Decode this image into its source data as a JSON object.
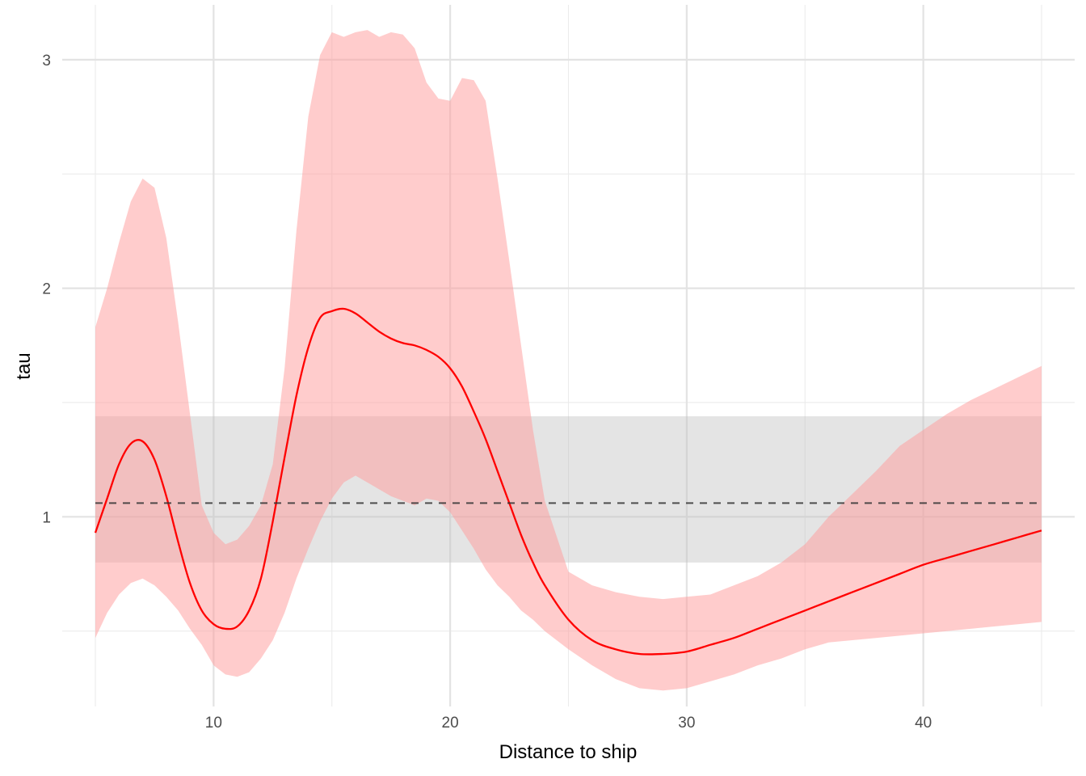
{
  "chart_data": {
    "type": "line",
    "title": "",
    "xlabel": "Distance to ship",
    "ylabel": "tau",
    "xlim": [
      3.6,
      46.4
    ],
    "ylim": [
      0.17,
      3.24
    ],
    "x_major_ticks": [
      10,
      20,
      30,
      40
    ],
    "x_minor_ticks": [
      5,
      15,
      25,
      35,
      45
    ],
    "y_major_ticks": [
      1,
      2,
      3
    ],
    "y_minor_ticks": [
      0.5,
      1.5,
      2.5
    ],
    "x_tick_labels": [
      "10",
      "20",
      "30",
      "40"
    ],
    "y_tick_labels": [
      "1",
      "2",
      "3"
    ],
    "grid": true,
    "reference": {
      "line_y": 1.06,
      "band_low": 0.8,
      "band_high": 1.44,
      "band_color": "#bfbfbf",
      "line_color": "#333333"
    },
    "series": [
      {
        "color": "#ff0000",
        "ribbon_color": "#ff9999",
        "x": [
          5,
          5.5,
          6,
          6.5,
          7,
          7.5,
          8,
          8.5,
          9,
          9.5,
          10,
          10.5,
          11,
          11.5,
          12,
          12.5,
          13,
          13.5,
          14,
          14.5,
          15,
          15.5,
          16,
          16.5,
          17,
          17.5,
          18,
          18.5,
          19,
          19.5,
          20,
          20.5,
          21,
          21.5,
          22,
          22.5,
          23,
          23.5,
          24,
          25,
          26,
          27,
          28,
          29,
          30,
          31,
          32,
          33,
          34,
          35,
          36,
          37,
          38,
          39,
          40,
          41,
          42,
          43,
          44,
          45
        ],
        "y": [
          0.93,
          1.08,
          1.23,
          1.32,
          1.33,
          1.25,
          1.09,
          0.89,
          0.71,
          0.59,
          0.53,
          0.51,
          0.52,
          0.59,
          0.73,
          0.98,
          1.26,
          1.53,
          1.74,
          1.87,
          1.9,
          1.91,
          1.89,
          1.85,
          1.81,
          1.78,
          1.76,
          1.75,
          1.73,
          1.7,
          1.65,
          1.57,
          1.46,
          1.34,
          1.2,
          1.06,
          0.92,
          0.8,
          0.7,
          0.55,
          0.46,
          0.42,
          0.4,
          0.4,
          0.41,
          0.44,
          0.47,
          0.51,
          0.55,
          0.59,
          0.63,
          0.67,
          0.71,
          0.75,
          0.79,
          0.82,
          0.85,
          0.88,
          0.91,
          0.94
        ],
        "lower": [
          0.47,
          0.58,
          0.66,
          0.71,
          0.73,
          0.7,
          0.65,
          0.59,
          0.51,
          0.44,
          0.35,
          0.31,
          0.3,
          0.32,
          0.38,
          0.46,
          0.58,
          0.73,
          0.86,
          0.98,
          1.08,
          1.15,
          1.18,
          1.15,
          1.12,
          1.09,
          1.07,
          1.05,
          1.08,
          1.07,
          1.02,
          0.94,
          0.86,
          0.77,
          0.7,
          0.65,
          0.59,
          0.55,
          0.5,
          0.42,
          0.35,
          0.29,
          0.25,
          0.24,
          0.25,
          0.28,
          0.31,
          0.35,
          0.38,
          0.42,
          0.45,
          0.46,
          0.47,
          0.48,
          0.49,
          0.5,
          0.51,
          0.52,
          0.53,
          0.54
        ],
        "upper": [
          1.83,
          2.0,
          2.2,
          2.38,
          2.48,
          2.44,
          2.22,
          1.85,
          1.45,
          1.05,
          0.93,
          0.88,
          0.9,
          0.96,
          1.05,
          1.23,
          1.65,
          2.25,
          2.75,
          3.02,
          3.12,
          3.1,
          3.12,
          3.13,
          3.1,
          3.12,
          3.11,
          3.05,
          2.9,
          2.83,
          2.82,
          2.92,
          2.91,
          2.82,
          2.48,
          2.12,
          1.75,
          1.38,
          1.07,
          0.76,
          0.7,
          0.67,
          0.65,
          0.64,
          0.65,
          0.66,
          0.7,
          0.74,
          0.8,
          0.88,
          1.0,
          1.1,
          1.2,
          1.31,
          1.38,
          1.45,
          1.51,
          1.56,
          1.61,
          1.66
        ]
      }
    ]
  }
}
